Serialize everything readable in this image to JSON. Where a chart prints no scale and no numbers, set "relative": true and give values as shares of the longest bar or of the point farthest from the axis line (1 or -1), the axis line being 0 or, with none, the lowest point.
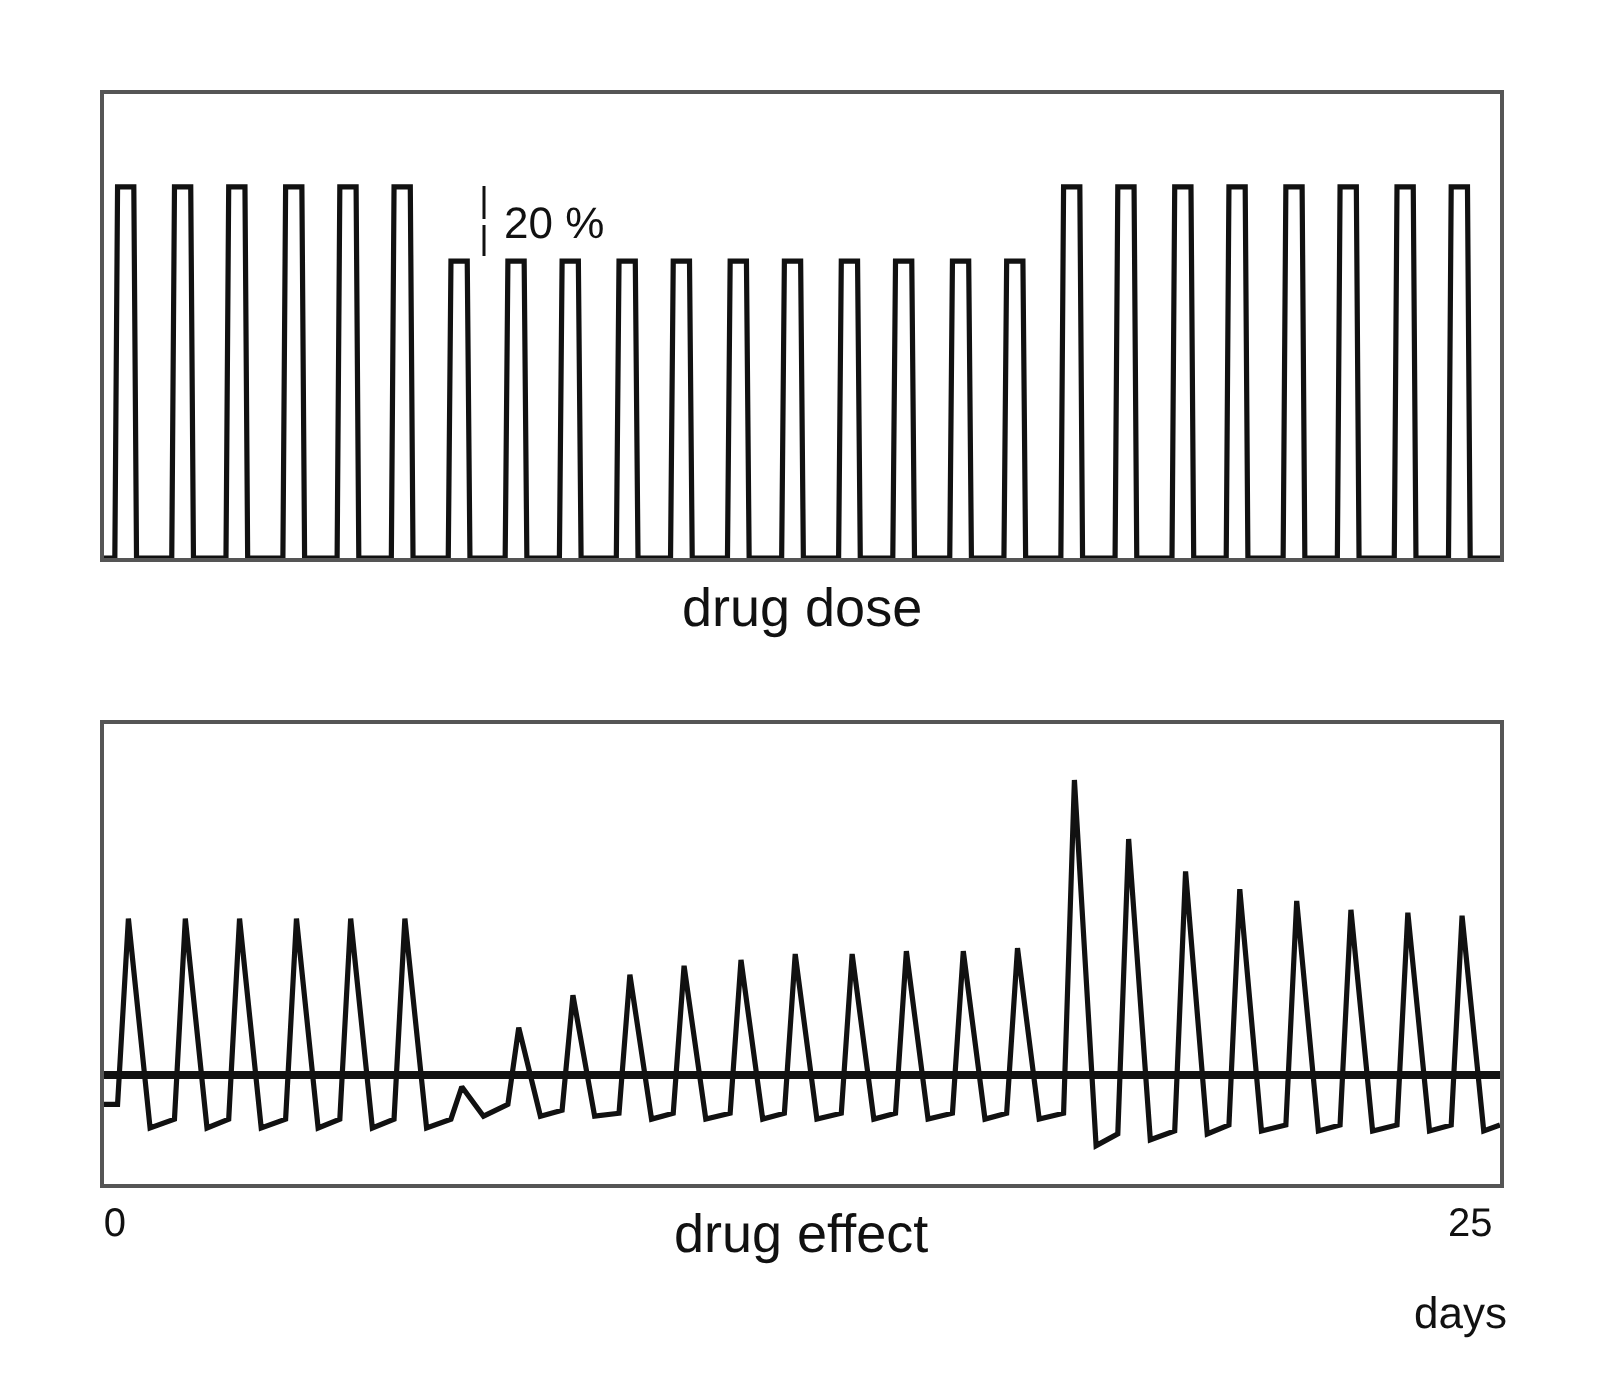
{
  "chart_data": [
    {
      "type": "line",
      "relative": true,
      "xlabel": "drug dose",
      "xlim": [
        -0.2,
        25.55
      ],
      "tick_labels": false,
      "marker": "none",
      "line_style": "solid",
      "annotations": [
        "20 %"
      ],
      "series": [
        {
          "color": "#111111",
          "x": [
            -0.2,
            0,
            0.05,
            0.35,
            0.4,
            1.05,
            1.1,
            1.4,
            1.45,
            2.05,
            2.1,
            2.4,
            2.45,
            3.1,
            3.15,
            3.45,
            3.5,
            4.1,
            4.15,
            4.45,
            4.5,
            5.1,
            5.15,
            5.45,
            5.5,
            6.15,
            6.2,
            6.5,
            6.55,
            7.2,
            7.25,
            7.55,
            7.6,
            8.2,
            8.25,
            8.55,
            8.6,
            9.25,
            9.3,
            9.6,
            9.65,
            10.25,
            10.3,
            10.6,
            10.65,
            11.3,
            11.35,
            11.65,
            11.7,
            12.3,
            12.35,
            12.65,
            12.7,
            13.35,
            13.4,
            13.7,
            13.75,
            14.35,
            14.4,
            14.7,
            14.75,
            15.4,
            15.45,
            15.75,
            15.8,
            16.4,
            16.45,
            16.75,
            16.8,
            17.45,
            17.5,
            17.8,
            17.85,
            18.45,
            18.5,
            18.8,
            18.85,
            19.5,
            19.55,
            19.85,
            19.9,
            20.5,
            20.55,
            20.85,
            20.9,
            21.55,
            21.6,
            21.9,
            21.95,
            22.55,
            22.6,
            22.9,
            22.95,
            23.6,
            23.65,
            23.95,
            24.0,
            24.6,
            24.65,
            24.95,
            25.0,
            25.55
          ],
          "values": [
            0,
            0,
            1,
            1,
            0,
            0,
            1,
            1,
            0,
            0,
            1,
            1,
            0,
            0,
            1,
            1,
            0,
            0,
            1,
            1,
            0,
            0,
            1,
            1,
            0,
            0,
            0.8,
            0.8,
            0,
            0,
            0.8,
            0.8,
            0,
            0,
            0.8,
            0.8,
            0,
            0,
            0.8,
            0.8,
            0,
            0,
            0.8,
            0.8,
            0,
            0,
            0.8,
            0.8,
            0,
            0,
            0.8,
            0.8,
            0,
            0,
            0.8,
            0.8,
            0,
            0,
            0.8,
            0.8,
            0,
            0,
            0.8,
            0.8,
            0,
            0,
            0.8,
            0.8,
            0,
            0,
            1,
            1,
            0,
            0,
            1,
            1,
            0,
            0,
            1,
            1,
            0,
            0,
            1,
            1,
            0,
            0,
            1,
            1,
            0,
            0,
            1,
            1,
            0,
            0,
            1,
            1,
            0,
            0,
            1,
            1,
            0,
            0
          ]
        }
      ]
    },
    {
      "type": "line",
      "relative": true,
      "xlabel": "drug effect",
      "xlim": [
        -0.2,
        25.55
      ],
      "xticks": [
        0,
        25
      ],
      "tick_labels": "x",
      "marker": "none",
      "line_style": "solid",
      "annotations": [
        "days"
      ],
      "series": [
        {
          "color": "#111111",
          "x": [
            -0.2,
            0.05,
            0.25,
            0.65,
            1.1,
            1.3,
            1.7,
            2.1,
            2.3,
            2.7,
            3.15,
            3.35,
            3.75,
            4.15,
            4.35,
            4.75,
            5.15,
            5.35,
            5.75,
            6.2,
            6.4,
            6.8,
            7.25,
            7.45,
            7.85,
            8.25,
            8.45,
            8.85,
            9.3,
            9.5,
            9.9,
            10.3,
            10.5,
            10.9,
            11.35,
            11.55,
            11.95,
            12.35,
            12.55,
            12.95,
            13.4,
            13.6,
            14.0,
            14.4,
            14.6,
            15.0,
            15.45,
            15.65,
            16.05,
            16.45,
            16.65,
            17.05,
            17.5,
            17.7,
            18.1,
            18.5,
            18.7,
            19.1,
            19.55,
            19.75,
            20.15,
            20.55,
            20.75,
            21.15,
            21.6,
            21.8,
            22.2,
            22.6,
            22.8,
            23.2,
            23.65,
            23.85,
            24.25,
            24.65,
            24.85,
            25.25,
            25.55
          ],
          "values": [
            -0.1,
            -0.1,
            0.53,
            -0.18,
            -0.15,
            0.53,
            -0.18,
            -0.15,
            0.53,
            -0.18,
            -0.15,
            0.53,
            -0.18,
            -0.15,
            0.53,
            -0.18,
            -0.15,
            0.53,
            -0.18,
            -0.15,
            -0.04,
            -0.14,
            -0.1,
            0.16,
            -0.14,
            -0.12,
            0.27,
            -0.14,
            -0.13,
            0.34,
            -0.15,
            -0.13,
            0.37,
            -0.15,
            -0.13,
            0.39,
            -0.15,
            -0.13,
            0.41,
            -0.15,
            -0.13,
            0.41,
            -0.15,
            -0.13,
            0.42,
            -0.15,
            -0.13,
            0.42,
            -0.15,
            -0.13,
            0.43,
            -0.15,
            -0.13,
            1,
            -0.24,
            -0.2,
            0.8,
            -0.22,
            -0.19,
            0.69,
            -0.2,
            -0.17,
            0.63,
            -0.19,
            -0.17,
            0.59,
            -0.19,
            -0.17,
            0.56,
            -0.19,
            -0.17,
            0.55,
            -0.19,
            -0.17,
            0.54,
            -0.19,
            -0.17
          ]
        }
      ]
    }
  ]
}
